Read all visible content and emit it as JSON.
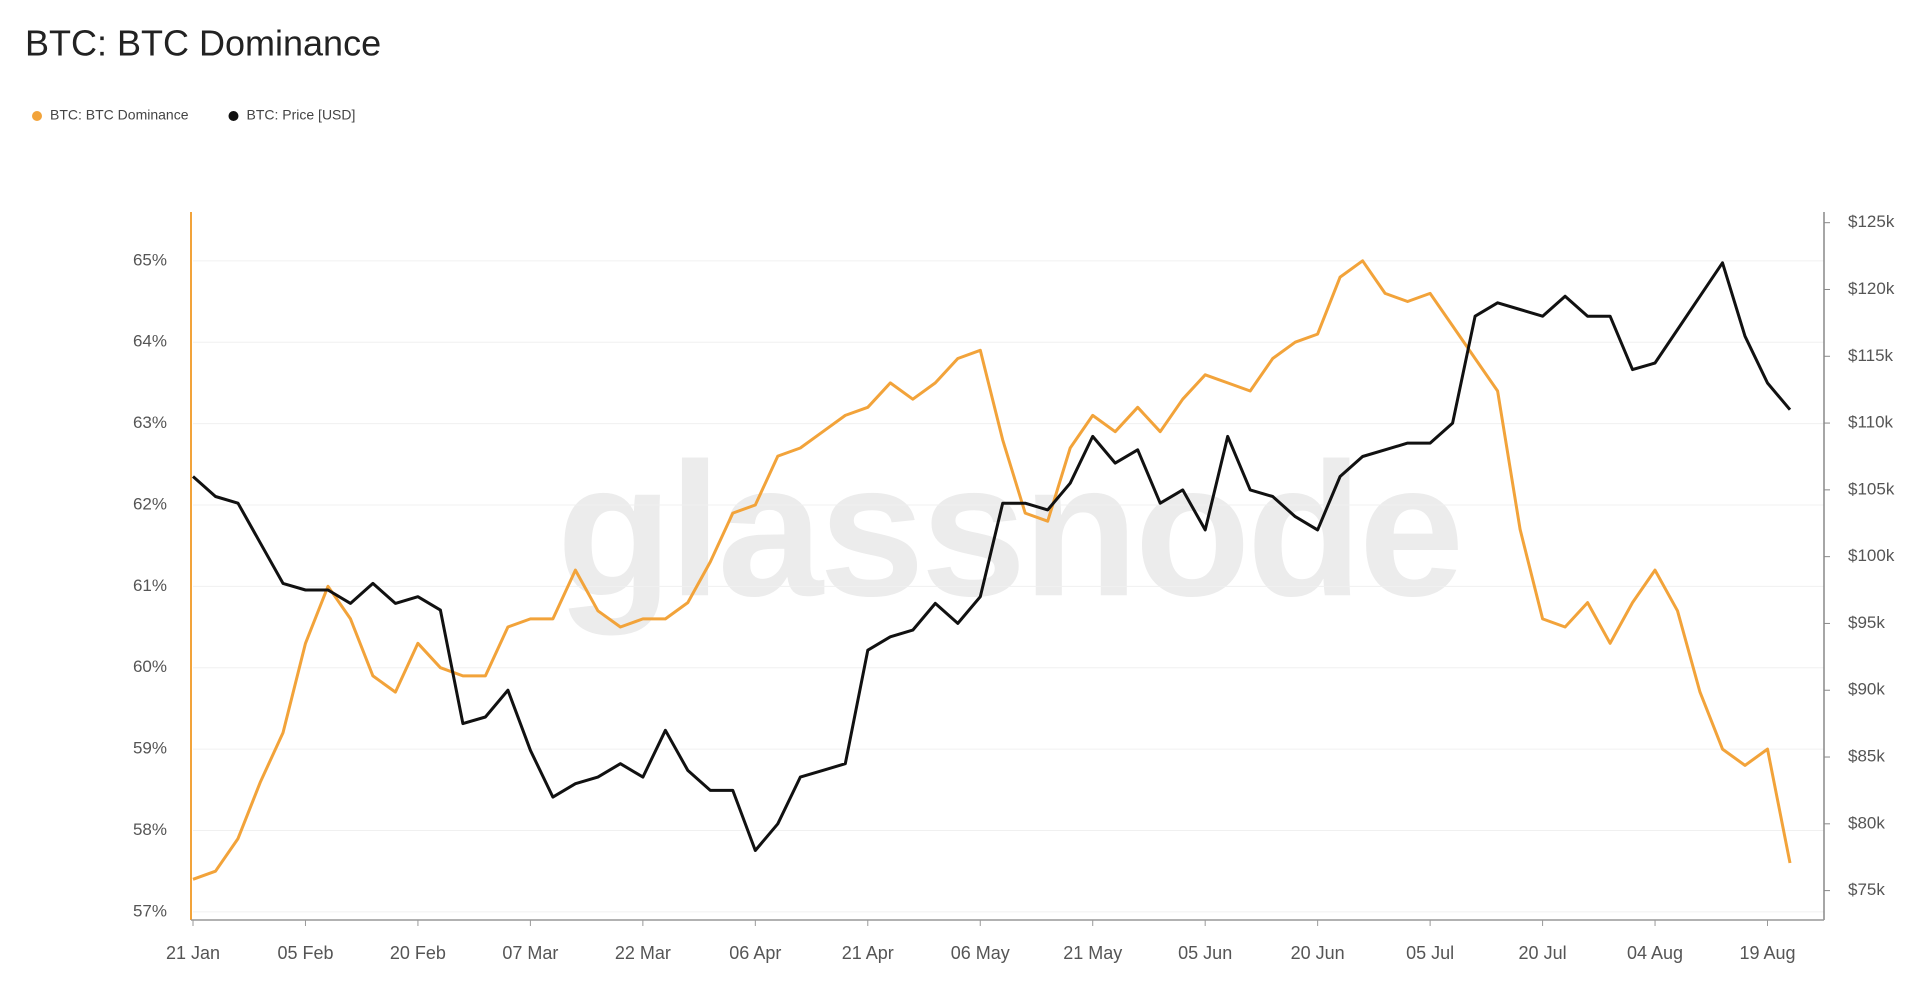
{
  "chart_data": {
    "type": "line",
    "title": "BTC: BTC Dominance",
    "watermark": "glassnode",
    "legend": "top-left",
    "grid": true,
    "categories": [
      "21 Jan",
      null,
      null,
      null,
      null,
      "05 Feb",
      null,
      null,
      null,
      null,
      "20 Feb",
      null,
      null,
      null,
      null,
      "07 Mar",
      null,
      null,
      null,
      null,
      "22 Mar",
      null,
      null,
      null,
      null,
      "06 Apr",
      null,
      null,
      null,
      null,
      "21 Apr",
      null,
      null,
      null,
      null,
      "06 May",
      null,
      null,
      null,
      null,
      "21 May",
      null,
      null,
      null,
      null,
      "05 Jun",
      null,
      null,
      null,
      null,
      "20 Jun",
      null,
      null,
      null,
      null,
      "05 Jul",
      null,
      null,
      null,
      null,
      "20 Jul",
      null,
      null,
      null,
      null,
      "04 Aug",
      null,
      null,
      null,
      null,
      "19 Aug",
      null
    ],
    "series": [
      {
        "name": "BTC: BTC Dominance",
        "color": "#f2a33a",
        "axis": "y",
        "values": [
          57.4,
          57.5,
          57.9,
          58.6,
          59.2,
          60.3,
          61.0,
          60.6,
          59.9,
          59.7,
          60.3,
          60.0,
          59.9,
          59.9,
          60.5,
          60.6,
          60.6,
          61.2,
          60.7,
          60.5,
          60.6,
          60.6,
          60.8,
          61.3,
          61.9,
          62.0,
          62.6,
          62.7,
          62.9,
          63.1,
          63.2,
          63.5,
          63.3,
          63.5,
          63.8,
          63.9,
          62.8,
          61.9,
          61.8,
          62.7,
          63.1,
          62.9,
          63.2,
          62.9,
          63.3,
          63.6,
          63.5,
          63.4,
          63.8,
          64.0,
          64.1,
          64.8,
          65.0,
          64.6,
          64.5,
          64.6,
          64.2,
          63.8,
          63.4,
          61.7,
          60.6,
          60.5,
          60.8,
          60.3,
          60.8,
          61.2,
          60.7,
          59.7,
          59.0,
          58.8,
          59.0,
          57.6
        ]
      },
      {
        "name": "BTC: Price [USD]",
        "color": "#111111",
        "axis": "y2",
        "values": [
          106000,
          104500,
          104000,
          101000,
          98000,
          97500,
          97500,
          96500,
          98000,
          96500,
          97000,
          96000,
          87500,
          88000,
          90000,
          85500,
          82000,
          83000,
          83500,
          84500,
          83500,
          87000,
          84000,
          82500,
          82500,
          78000,
          80000,
          83500,
          84000,
          84500,
          93000,
          94000,
          94500,
          96500,
          95000,
          97000,
          104000,
          104000,
          103500,
          105500,
          109000,
          107000,
          108000,
          104000,
          105000,
          102000,
          109000,
          105000,
          104500,
          103000,
          102000,
          106000,
          107500,
          108000,
          108500,
          108500,
          110000,
          118000,
          119000,
          118500,
          118000,
          119500,
          118000,
          118000,
          114000,
          114500,
          117000,
          119500,
          122000,
          116500,
          113000,
          111000
        ]
      }
    ],
    "ylim": [
      56.9,
      65.6
    ],
    "yticks": [
      {
        "value": 57,
        "label": "57%"
      },
      {
        "value": 58,
        "label": "58%"
      },
      {
        "value": 59,
        "label": "59%"
      },
      {
        "value": 60,
        "label": "60%"
      },
      {
        "value": 61,
        "label": "61%"
      },
      {
        "value": 62,
        "label": "62%"
      },
      {
        "value": 63,
        "label": "63%"
      },
      {
        "value": 64,
        "label": "64%"
      },
      {
        "value": 65,
        "label": "65%"
      }
    ],
    "y2lim": [
      72800,
      125800
    ],
    "y2ticks": [
      {
        "value": 75000,
        "label": "$75k"
      },
      {
        "value": 80000,
        "label": "$80k"
      },
      {
        "value": 85000,
        "label": "$85k"
      },
      {
        "value": 90000,
        "label": "$90k"
      },
      {
        "value": 95000,
        "label": "$95k"
      },
      {
        "value": 100000,
        "label": "$100k"
      },
      {
        "value": 105000,
        "label": "$105k"
      },
      {
        "value": 110000,
        "label": "$110k"
      },
      {
        "value": 115000,
        "label": "$115k"
      },
      {
        "value": 120000,
        "label": "$120k"
      },
      {
        "value": 125000,
        "label": "$125k"
      }
    ]
  }
}
